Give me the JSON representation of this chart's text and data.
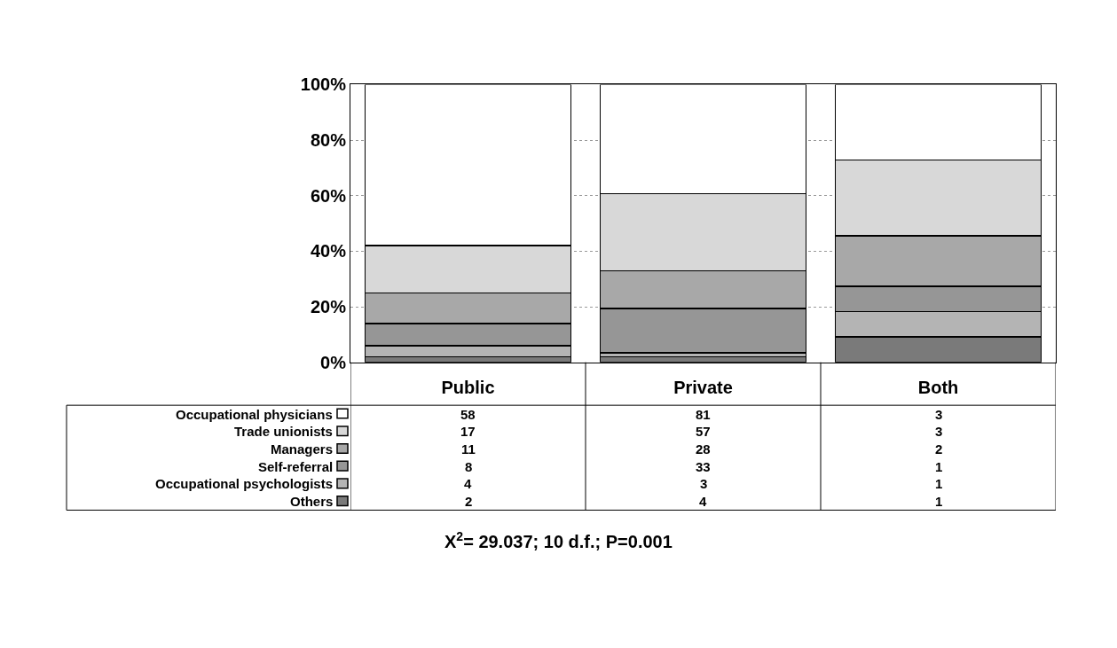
{
  "chart_data": {
    "type": "bar",
    "stacked": true,
    "categories": [
      "Public",
      "Private",
      "Both"
    ],
    "series": [
      {
        "name": "Others",
        "color": "#7a7a7a",
        "values": [
          2,
          1.9,
          9.1
        ]
      },
      {
        "name": "Occupational psychologists",
        "color": "#b4b4b4",
        "values": [
          4,
          1.5,
          9.1
        ]
      },
      {
        "name": "Self-referral",
        "color": "#969696",
        "values": [
          8,
          16.0,
          9.1
        ]
      },
      {
        "name": "Managers",
        "color": "#a8a8a8",
        "values": [
          11,
          13.6,
          18.2
        ]
      },
      {
        "name": "Trade unionists",
        "color": "#d8d8d8",
        "values": [
          17,
          27.7,
          27.3
        ]
      },
      {
        "name": "Occupational physicians",
        "color": "#ffffff",
        "values": [
          58,
          39.3,
          27.2
        ]
      }
    ],
    "ylim": [
      0,
      100
    ],
    "yticks": [
      {
        "value": 0,
        "label": "0%"
      },
      {
        "value": 20,
        "label": "20%"
      },
      {
        "value": 40,
        "label": "40%"
      },
      {
        "value": 60,
        "label": "60%"
      },
      {
        "value": 80,
        "label": "80%"
      },
      {
        "value": 100,
        "label": "100%"
      }
    ],
    "grid": "y",
    "legend": "bottom left",
    "annotations": [
      "58",
      "81",
      "3",
      "17",
      "57",
      "3",
      "11",
      "28",
      "2",
      "8",
      "33",
      "1",
      "4",
      "3",
      "1",
      "2",
      "4",
      "1",
      "X$^{2}$= 29.037; 10 d.f.; P=0.001"
    ]
  }
}
